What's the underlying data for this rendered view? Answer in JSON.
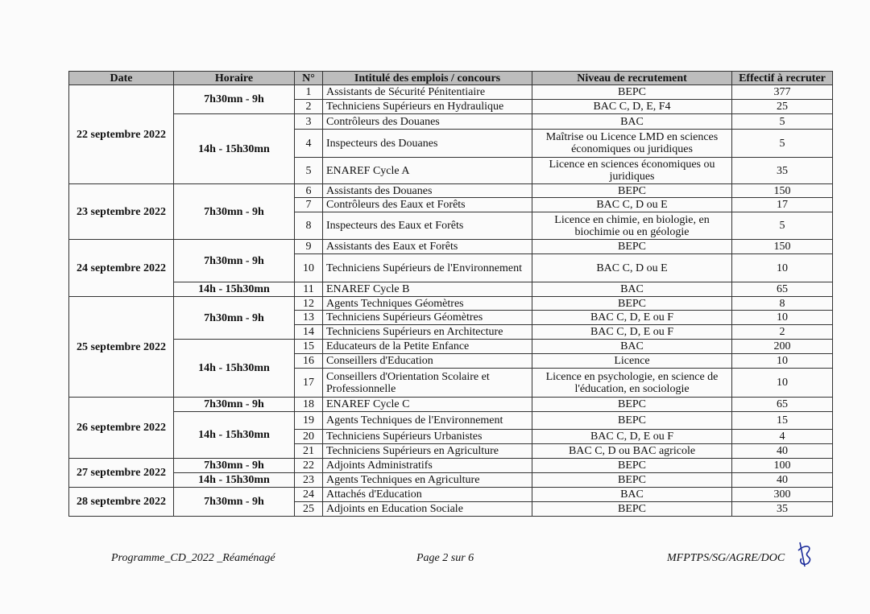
{
  "headers": [
    "Date",
    "Horaire",
    "N°",
    "Intitulé des emplois / concours",
    "Niveau de recrutement",
    "Effectif à recruter"
  ],
  "rows": [
    {
      "n": "1",
      "title": "Assistants de Sécurité Pénitentiaire",
      "level": "BEPC",
      "count": "377"
    },
    {
      "n": "2",
      "title": "Techniciens Supérieurs en Hydraulique",
      "level": "BAC C, D, E, F4",
      "count": "25"
    },
    {
      "n": "3",
      "title": "Contrôleurs des Douanes",
      "level": "BAC",
      "count": "5"
    },
    {
      "n": "4",
      "title": "Inspecteurs des Douanes",
      "level": "Maîtrise ou Licence LMD en sciences économiques ou juridiques",
      "count": "5"
    },
    {
      "n": "5",
      "title": "ENAREF Cycle A",
      "level": "Licence en sciences économiques ou juridiques",
      "count": "35"
    },
    {
      "n": "6",
      "title": "Assistants des Douanes",
      "level": "BEPC",
      "count": "150"
    },
    {
      "n": "7",
      "title": "Contrôleurs des Eaux et Forêts",
      "level": "BAC C, D ou E",
      "count": "17"
    },
    {
      "n": "8",
      "title": "Inspecteurs des Eaux et Forêts",
      "level": "Licence en chimie, en biologie, en biochimie ou en géologie",
      "count": "5"
    },
    {
      "n": "9",
      "title": "Assistants des Eaux et Forêts",
      "level": "BEPC",
      "count": "150"
    },
    {
      "n": "10",
      "title": "Techniciens Supérieurs de l'Environnement",
      "level": "BAC C, D ou E",
      "count": "10"
    },
    {
      "n": "11",
      "title": "ENAREF Cycle B",
      "level": "BAC",
      "count": "65"
    },
    {
      "n": "12",
      "title": "Agents Techniques Géomètres",
      "level": "BEPC",
      "count": "8"
    },
    {
      "n": "13",
      "title": "Techniciens Supérieurs Géomètres",
      "level": "BAC C, D, E ou F",
      "count": "10"
    },
    {
      "n": "14",
      "title": "Techniciens Supérieurs en Architecture",
      "level": "BAC C, D, E ou F",
      "count": "2"
    },
    {
      "n": "15",
      "title": "Educateurs de la Petite Enfance",
      "level": "BAC",
      "count": "200"
    },
    {
      "n": "16",
      "title": "Conseillers d'Education",
      "level": "Licence",
      "count": "10"
    },
    {
      "n": "17",
      "title": "Conseillers d'Orientation Scolaire et Professionnelle",
      "level": "Licence en psychologie, en science de l'éducation, en sociologie",
      "count": "10"
    },
    {
      "n": "18",
      "title": "ENAREF Cycle C",
      "level": "BEPC",
      "count": "65"
    },
    {
      "n": "19",
      "title": "Agents Techniques de l'Environnement",
      "level": "BEPC",
      "count": "15"
    },
    {
      "n": "20",
      "title": "Techniciens Supérieurs Urbanistes",
      "level": "BAC C, D, E ou F",
      "count": "4"
    },
    {
      "n": "21",
      "title": "Techniciens Supérieurs en Agriculture",
      "level": "BAC C, D ou BAC agricole",
      "count": "40"
    },
    {
      "n": "22",
      "title": "Adjoints Administratifs",
      "level": "BEPC",
      "count": "100"
    },
    {
      "n": "23",
      "title": "Agents Techniques en Agriculture",
      "level": "BEPC",
      "count": "40"
    },
    {
      "n": "24",
      "title": "Attachés d'Education",
      "level": "BAC",
      "count": "300"
    },
    {
      "n": "25",
      "title": "Adjoints en Education Sociale",
      "level": "BEPC",
      "count": "35"
    }
  ],
  "dates": [
    {
      "label": "22 septembre 2022",
      "rows": 5
    },
    {
      "label": "23 septembre 2022",
      "rows": 3
    },
    {
      "label": "24 septembre 2022",
      "rows": 3
    },
    {
      "label": "25 septembre 2022",
      "rows": 6
    },
    {
      "label": "26 septembre 2022",
      "rows": 4
    },
    {
      "label": "27 septembre 2022",
      "rows": 2
    },
    {
      "label": "28 septembre 2022",
      "rows": 2
    }
  ],
  "slots": [
    {
      "label": "7h30mn - 9h",
      "rows": 2
    },
    {
      "label": "14h - 15h30mn",
      "rows": 3
    },
    {
      "label": "7h30mn - 9h",
      "rows": 3
    },
    {
      "label": "7h30mn - 9h",
      "rows": 2
    },
    {
      "label": "14h - 15h30mn",
      "rows": 1
    },
    {
      "label": "7h30mn - 9h",
      "rows": 3
    },
    {
      "label": "14h - 15h30mn",
      "rows": 3
    },
    {
      "label": "7h30mn - 9h",
      "rows": 1
    },
    {
      "label": "14h - 15h30mn",
      "rows": 3
    },
    {
      "label": "7h30mn - 9h",
      "rows": 1
    },
    {
      "label": "14h - 15h30mn",
      "rows": 1
    },
    {
      "label": "7h30mn - 9h",
      "rows": 2
    }
  ],
  "footer": {
    "left": "Programme_CD_2022 _Réaménagé",
    "center": "Page 2 sur 6",
    "right": "MFPTPS/SG/AGRE/DOC",
    "initials": "B"
  }
}
